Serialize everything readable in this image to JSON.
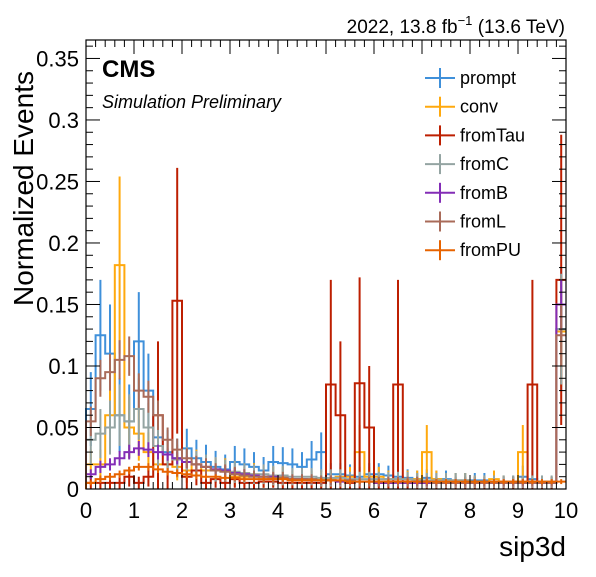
{
  "header": {
    "lumi_text": "2022, 13.8 fb",
    "lumi_exp": "−1",
    "energy_text": "(13.6 TeV)"
  },
  "labels": {
    "cms": "CMS",
    "subtitle": "Simulation Preliminary"
  },
  "colors": {
    "prompt": "#3f90da",
    "conv": "#ffa90e",
    "fromTau": "#bd1f01",
    "fromC": "#94a4a2",
    "fromB": "#832db6",
    "fromL": "#a96b59",
    "fromPU": "#e76300"
  },
  "chart_data": {
    "type": "step-histogram",
    "xlabel": "sip3d",
    "ylabel": "Normalized Events",
    "xlim": [
      0,
      10
    ],
    "ylim": [
      0,
      0.365
    ],
    "xticks": [
      "0",
      "1",
      "2",
      "3",
      "4",
      "5",
      "6",
      "7",
      "8",
      "9",
      "10"
    ],
    "yticks": [
      "0",
      "0.05",
      "0.1",
      "0.15",
      "0.2",
      "0.25",
      "0.3",
      "0.35"
    ],
    "legend_position": "top-right",
    "bin_width": 0.2,
    "series": [
      {
        "name": "prompt",
        "values": [
          0.065,
          0.125,
          0.11,
          0.06,
          0.055,
          0.12,
          0.08,
          0.042,
          0.03,
          0.025,
          0.033,
          0.025,
          0.022,
          0.018,
          0.016,
          0.022,
          0.02,
          0.018,
          0.015,
          0.022,
          0.021,
          0.02,
          0.018,
          0.024,
          0.03,
          0.012,
          0.012,
          0.011,
          0.01,
          0.012,
          0.012,
          0.011,
          0.01,
          0.009,
          0.008,
          0.009,
          0.008,
          0.008,
          0.007,
          0.007,
          0.007,
          0.007,
          0.006,
          0.006,
          0.006,
          0.01,
          0.008,
          0.006,
          0.005,
          0.13
        ],
        "errors": [
          0.03,
          0.045,
          0.04,
          0.03,
          0.03,
          0.04,
          0.03,
          0.022,
          0.018,
          0.016,
          0.016,
          0.015,
          0.014,
          0.013,
          0.012,
          0.013,
          0.013,
          0.012,
          0.011,
          0.013,
          0.013,
          0.013,
          0.012,
          0.015,
          0.016,
          0.009,
          0.009,
          0.009,
          0.008,
          0.009,
          0.009,
          0.008,
          0.008,
          0.007,
          0.007,
          0.007,
          0.007,
          0.007,
          0.006,
          0.006,
          0.006,
          0.006,
          0.005,
          0.005,
          0.005,
          0.009,
          0.007,
          0.005,
          0.005,
          0.05
        ]
      },
      {
        "name": "conv",
        "values": [
          0.02,
          0.02,
          0.06,
          0.182,
          0.05,
          0.045,
          0.03,
          0.02,
          0.02,
          0.018,
          0.015,
          0.02,
          0.015,
          0.015,
          0.015,
          0.01,
          0.01,
          0.012,
          0.008,
          0.01,
          0.01,
          0.008,
          0.008,
          0.008,
          0.008,
          0.008,
          0.01,
          0.01,
          0.03,
          0.01,
          0.01,
          0.008,
          0.008,
          0.008,
          0.008,
          0.03,
          0.008,
          0.007,
          0.007,
          0.007,
          0.006,
          0.006,
          0.008,
          0.006,
          0.005,
          0.03,
          0.006,
          0.005,
          0.005,
          0.128
        ],
        "errors": [
          0.012,
          0.012,
          0.03,
          0.072,
          0.025,
          0.022,
          0.016,
          0.012,
          0.012,
          0.011,
          0.01,
          0.012,
          0.01,
          0.01,
          0.01,
          0.008,
          0.008,
          0.009,
          0.007,
          0.008,
          0.008,
          0.007,
          0.007,
          0.007,
          0.007,
          0.007,
          0.008,
          0.008,
          0.022,
          0.008,
          0.008,
          0.007,
          0.007,
          0.007,
          0.007,
          0.022,
          0.007,
          0.006,
          0.006,
          0.006,
          0.005,
          0.005,
          0.007,
          0.005,
          0.005,
          0.022,
          0.005,
          0.005,
          0.005,
          0.045
        ]
      },
      {
        "name": "fromTau",
        "values": [
          0.005,
          0.005,
          0.005,
          0.005,
          0.01,
          0.005,
          0.01,
          0.06,
          0.02,
          0.153,
          0.01,
          0.015,
          0.005,
          0.008,
          0.005,
          0.008,
          0.005,
          0.005,
          0.006,
          0.006,
          0.005,
          0.005,
          0.005,
          0.005,
          0.005,
          0.085,
          0.06,
          0.005,
          0.086,
          0.05,
          0.005,
          0.005,
          0.085,
          0.005,
          0.005,
          0.005,
          0.005,
          0.005,
          0.005,
          0.005,
          0.005,
          0.005,
          0.005,
          0.005,
          0.005,
          0.005,
          0.085,
          0.005,
          0.005,
          0.17
        ],
        "errors": [
          0.005,
          0.005,
          0.005,
          0.005,
          0.008,
          0.005,
          0.008,
          0.06,
          0.02,
          0.108,
          0.01,
          0.012,
          0.005,
          0.007,
          0.005,
          0.007,
          0.005,
          0.005,
          0.005,
          0.005,
          0.005,
          0.005,
          0.005,
          0.005,
          0.005,
          0.085,
          0.06,
          0.005,
          0.086,
          0.05,
          0.005,
          0.005,
          0.085,
          0.005,
          0.005,
          0.005,
          0.005,
          0.005,
          0.005,
          0.005,
          0.005,
          0.005,
          0.005,
          0.005,
          0.005,
          0.005,
          0.085,
          0.005,
          0.005,
          0.118
        ]
      },
      {
        "name": "fromC",
        "values": [
          0.04,
          0.045,
          0.05,
          0.06,
          0.055,
          0.065,
          0.05,
          0.035,
          0.028,
          0.024,
          0.022,
          0.02,
          0.018,
          0.016,
          0.015,
          0.014,
          0.013,
          0.012,
          0.012,
          0.011,
          0.011,
          0.01,
          0.01,
          0.01,
          0.009,
          0.009,
          0.009,
          0.008,
          0.008,
          0.008,
          0.008,
          0.008,
          0.008,
          0.008,
          0.007,
          0.007,
          0.007,
          0.007,
          0.007,
          0.007,
          0.006,
          0.006,
          0.006,
          0.006,
          0.006,
          0.006,
          0.006,
          0.006,
          0.006,
          0.13
        ],
        "errors": [
          0.02,
          0.02,
          0.022,
          0.025,
          0.022,
          0.025,
          0.02,
          0.016,
          0.014,
          0.012,
          0.012,
          0.011,
          0.01,
          0.01,
          0.009,
          0.009,
          0.008,
          0.008,
          0.008,
          0.008,
          0.008,
          0.007,
          0.007,
          0.007,
          0.007,
          0.007,
          0.007,
          0.006,
          0.006,
          0.006,
          0.006,
          0.006,
          0.006,
          0.006,
          0.006,
          0.006,
          0.006,
          0.006,
          0.006,
          0.006,
          0.005,
          0.005,
          0.005,
          0.005,
          0.005,
          0.005,
          0.005,
          0.005,
          0.005,
          0.045
        ]
      },
      {
        "name": "fromB",
        "values": [
          0.012,
          0.018,
          0.02,
          0.025,
          0.03,
          0.033,
          0.032,
          0.03,
          0.028,
          0.025,
          0.022,
          0.02,
          0.018,
          0.016,
          0.015,
          0.013,
          0.012,
          0.011,
          0.01,
          0.01,
          0.009,
          0.008,
          0.008,
          0.007,
          0.007,
          0.007,
          0.006,
          0.006,
          0.006,
          0.006,
          0.005,
          0.005,
          0.005,
          0.005,
          0.005,
          0.005,
          0.005,
          0.005,
          0.005,
          0.005,
          0.005,
          0.005,
          0.005,
          0.005,
          0.005,
          0.005,
          0.005,
          0.005,
          0.005,
          0.15
        ],
        "errors": [
          0.004,
          0.005,
          0.005,
          0.006,
          0.006,
          0.006,
          0.006,
          0.006,
          0.005,
          0.005,
          0.005,
          0.005,
          0.004,
          0.004,
          0.004,
          0.004,
          0.004,
          0.004,
          0.003,
          0.003,
          0.003,
          0.003,
          0.003,
          0.003,
          0.003,
          0.003,
          0.003,
          0.003,
          0.003,
          0.003,
          0.003,
          0.003,
          0.003,
          0.003,
          0.003,
          0.003,
          0.003,
          0.003,
          0.003,
          0.003,
          0.003,
          0.003,
          0.003,
          0.003,
          0.003,
          0.003,
          0.003,
          0.003,
          0.003,
          0.02
        ]
      },
      {
        "name": "fromL",
        "values": [
          0.055,
          0.09,
          0.095,
          0.105,
          0.108,
          0.08,
          0.075,
          0.06,
          0.04,
          0.032,
          0.025,
          0.02,
          0.018,
          0.015,
          0.014,
          0.012,
          0.011,
          0.01,
          0.01,
          0.009,
          0.009,
          0.008,
          0.008,
          0.008,
          0.007,
          0.007,
          0.007,
          0.007,
          0.006,
          0.006,
          0.006,
          0.006,
          0.006,
          0.006,
          0.006,
          0.006,
          0.005,
          0.005,
          0.005,
          0.005,
          0.005,
          0.005,
          0.005,
          0.005,
          0.005,
          0.005,
          0.005,
          0.005,
          0.005,
          0.125
        ],
        "errors": [
          0.012,
          0.015,
          0.015,
          0.016,
          0.016,
          0.014,
          0.013,
          0.012,
          0.01,
          0.009,
          0.008,
          0.007,
          0.007,
          0.006,
          0.006,
          0.006,
          0.005,
          0.005,
          0.005,
          0.005,
          0.005,
          0.004,
          0.004,
          0.004,
          0.004,
          0.004,
          0.004,
          0.004,
          0.004,
          0.004,
          0.004,
          0.004,
          0.004,
          0.004,
          0.004,
          0.004,
          0.003,
          0.003,
          0.003,
          0.003,
          0.003,
          0.003,
          0.003,
          0.003,
          0.003,
          0.003,
          0.003,
          0.003,
          0.003,
          0.025
        ]
      },
      {
        "name": "fromPU",
        "values": [
          0.005,
          0.008,
          0.01,
          0.012,
          0.015,
          0.018,
          0.018,
          0.016,
          0.014,
          0.013,
          0.012,
          0.011,
          0.01,
          0.01,
          0.009,
          0.009,
          0.008,
          0.008,
          0.008,
          0.008,
          0.008,
          0.007,
          0.007,
          0.007,
          0.007,
          0.007,
          0.007,
          0.006,
          0.006,
          0.006,
          0.006,
          0.006,
          0.006,
          0.006,
          0.006,
          0.006,
          0.006,
          0.006,
          0.006,
          0.006,
          0.006,
          0.006,
          0.006,
          0.006,
          0.006,
          0.006,
          0.006,
          0.006,
          0.006,
          0.006
        ],
        "errors": [
          0.002,
          0.003,
          0.003,
          0.003,
          0.003,
          0.003,
          0.003,
          0.003,
          0.003,
          0.003,
          0.003,
          0.003,
          0.002,
          0.002,
          0.002,
          0.002,
          0.002,
          0.002,
          0.002,
          0.002,
          0.002,
          0.002,
          0.002,
          0.002,
          0.002,
          0.002,
          0.002,
          0.002,
          0.002,
          0.002,
          0.002,
          0.002,
          0.002,
          0.002,
          0.002,
          0.002,
          0.002,
          0.002,
          0.002,
          0.002,
          0.002,
          0.002,
          0.002,
          0.002,
          0.002,
          0.002,
          0.002,
          0.002,
          0.002,
          0.002
        ]
      }
    ]
  }
}
